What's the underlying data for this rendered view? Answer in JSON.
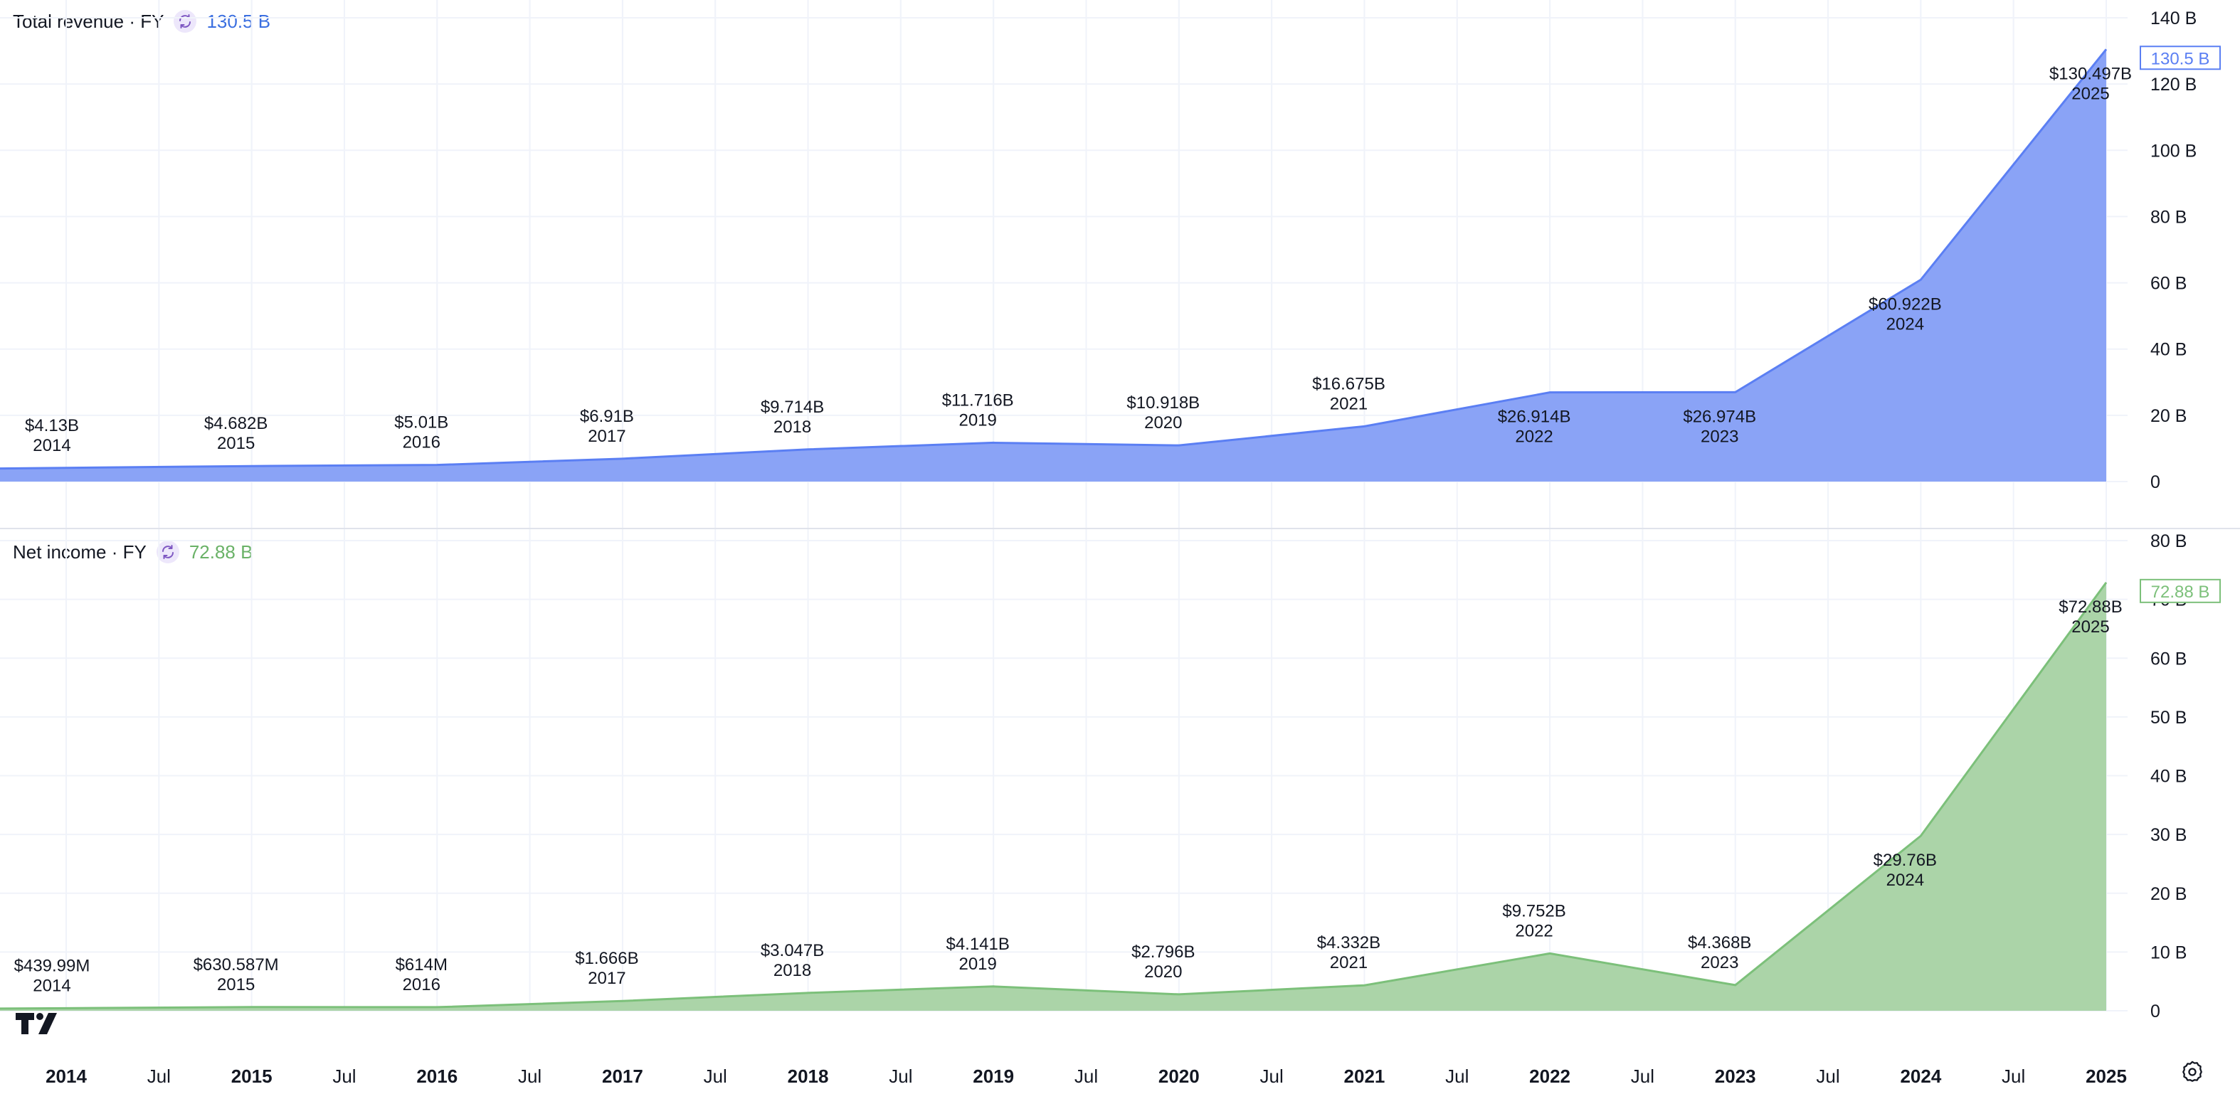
{
  "chart_data": [
    {
      "type": "area",
      "title": "Total revenue · FY",
      "current_value_label": "130.5 B",
      "color": "#5b7ff3",
      "fill": "#8aa3f6",
      "unit": "B",
      "ylim": [
        0,
        140
      ],
      "yticks": [
        0,
        20,
        40,
        60,
        80,
        100,
        120,
        140
      ],
      "ytick_labels": [
        "0",
        "20 B",
        "40 B",
        "60 B",
        "80 B",
        "100 B",
        "120 B",
        "140 B"
      ],
      "x": [
        2014,
        2015,
        2016,
        2017,
        2018,
        2019,
        2020,
        2021,
        2022,
        2023,
        2024,
        2025
      ],
      "values": [
        4.13,
        4.682,
        5.01,
        6.91,
        9.714,
        11.716,
        10.918,
        16.675,
        26.914,
        26.974,
        60.922,
        130.497
      ],
      "value_labels": [
        "$4.13B",
        "$4.682B",
        "$5.01B",
        "$6.91B",
        "$9.714B",
        "$11.716B",
        "$10.918B",
        "$16.675B",
        "$26.914B",
        "$26.974B",
        "$60.922B",
        "$130.497B"
      ],
      "year_labels": [
        "2014",
        "2015",
        "2016",
        "2017",
        "2018",
        "2019",
        "2020",
        "2021",
        "2022",
        "2023",
        "2024",
        "2025"
      ],
      "label_below": [
        false,
        false,
        false,
        false,
        false,
        false,
        false,
        false,
        true,
        true,
        true,
        true
      ]
    },
    {
      "type": "area",
      "title": "Net income · FY",
      "current_value_label": "72.88 B",
      "color": "#7cc07a",
      "fill": "#abd4a8",
      "unit": "B",
      "ylim": [
        0,
        80
      ],
      "yticks": [
        0,
        10,
        20,
        30,
        40,
        50,
        60,
        70,
        80
      ],
      "ytick_labels": [
        "0",
        "10 B",
        "20 B",
        "30 B",
        "40 B",
        "50 B",
        "60 B",
        "70 B",
        "80 B"
      ],
      "x": [
        2014,
        2015,
        2016,
        2017,
        2018,
        2019,
        2020,
        2021,
        2022,
        2023,
        2024,
        2025
      ],
      "values": [
        0.43999,
        0.630587,
        0.614,
        1.666,
        3.047,
        4.141,
        2.796,
        4.332,
        9.752,
        4.368,
        29.76,
        72.88
      ],
      "value_labels": [
        "$439.99M",
        "$630.587M",
        "$614M",
        "$1.666B",
        "$3.047B",
        "$4.141B",
        "$2.796B",
        "$4.332B",
        "$9.752B",
        "$4.368B",
        "$29.76B",
        "$72.88B"
      ],
      "year_labels": [
        "2014",
        "2015",
        "2016",
        "2017",
        "2018",
        "2019",
        "2020",
        "2021",
        "2022",
        "2023",
        "2024",
        "2025"
      ],
      "label_below": [
        false,
        false,
        false,
        false,
        false,
        false,
        false,
        false,
        false,
        false,
        true,
        true
      ]
    }
  ],
  "time_axis": {
    "ticks": [
      {
        "label": "2014",
        "t": 2014.0,
        "bold": true
      },
      {
        "label": "Jul",
        "t": 2014.5,
        "bold": false
      },
      {
        "label": "2015",
        "t": 2015.0,
        "bold": true
      },
      {
        "label": "Jul",
        "t": 2015.5,
        "bold": false
      },
      {
        "label": "2016",
        "t": 2016.0,
        "bold": true
      },
      {
        "label": "Jul",
        "t": 2016.5,
        "bold": false
      },
      {
        "label": "2017",
        "t": 2017.0,
        "bold": true
      },
      {
        "label": "Jul",
        "t": 2017.5,
        "bold": false
      },
      {
        "label": "2018",
        "t": 2018.0,
        "bold": true
      },
      {
        "label": "Jul",
        "t": 2018.5,
        "bold": false
      },
      {
        "label": "2019",
        "t": 2019.0,
        "bold": true
      },
      {
        "label": "Jul",
        "t": 2019.5,
        "bold": false
      },
      {
        "label": "2020",
        "t": 2020.0,
        "bold": true
      },
      {
        "label": "Jul",
        "t": 2020.5,
        "bold": false
      },
      {
        "label": "2021",
        "t": 2021.0,
        "bold": true
      },
      {
        "label": "Jul",
        "t": 2021.5,
        "bold": false
      },
      {
        "label": "2022",
        "t": 2022.0,
        "bold": true
      },
      {
        "label": "Jul",
        "t": 2022.5,
        "bold": false
      },
      {
        "label": "2023",
        "t": 2023.0,
        "bold": true
      },
      {
        "label": "Jul",
        "t": 2023.5,
        "bold": false
      },
      {
        "label": "2024",
        "t": 2024.0,
        "bold": true
      },
      {
        "label": "Jul",
        "t": 2024.5,
        "bold": false
      },
      {
        "label": "2025",
        "t": 2025.0,
        "bold": true
      }
    ]
  },
  "icons": {
    "sync": "sync-icon",
    "logo": "tradingview-logo-icon",
    "settings": "settings-gear-icon"
  }
}
